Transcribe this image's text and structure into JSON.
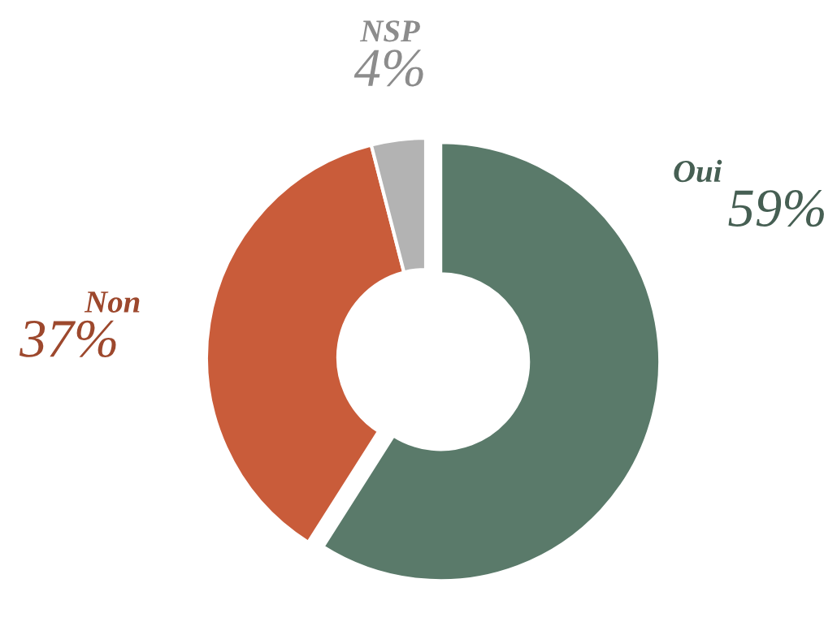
{
  "chart_data": {
    "type": "donut",
    "categories": [
      "Oui",
      "Non",
      "NSP"
    ],
    "values": [
      59,
      37,
      4
    ],
    "colors": [
      "#5a7a6a",
      "#c95c3a",
      "#b3b3b3"
    ],
    "value_labels": [
      "59%",
      "37%",
      "4%"
    ]
  }
}
